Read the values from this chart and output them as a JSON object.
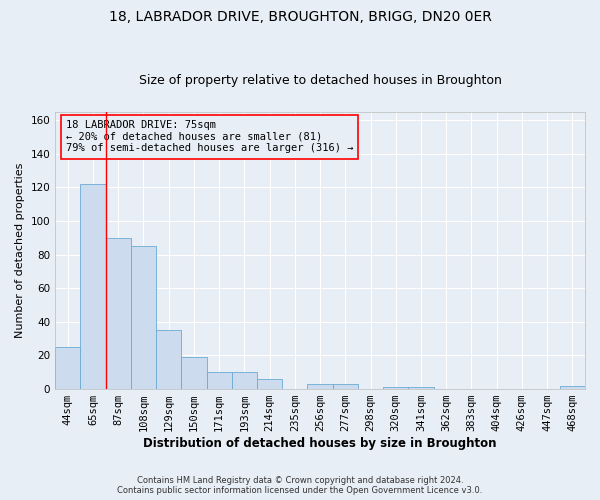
{
  "title1": "18, LABRADOR DRIVE, BROUGHTON, BRIGG, DN20 0ER",
  "title2": "Size of property relative to detached houses in Broughton",
  "xlabel": "Distribution of detached houses by size in Broughton",
  "ylabel": "Number of detached properties",
  "bins": [
    "44sqm",
    "65sqm",
    "87sqm",
    "108sqm",
    "129sqm",
    "150sqm",
    "171sqm",
    "193sqm",
    "214sqm",
    "235sqm",
    "256sqm",
    "277sqm",
    "298sqm",
    "320sqm",
    "341sqm",
    "362sqm",
    "383sqm",
    "404sqm",
    "426sqm",
    "447sqm",
    "468sqm"
  ],
  "values": [
    25,
    122,
    90,
    85,
    35,
    19,
    10,
    10,
    6,
    0,
    3,
    3,
    0,
    1,
    1,
    0,
    0,
    0,
    0,
    0,
    2
  ],
  "bar_color": "#ccdcee",
  "bar_edge_color": "#6aaad4",
  "ylim": [
    0,
    165
  ],
  "yticks": [
    0,
    20,
    40,
    60,
    80,
    100,
    120,
    140,
    160
  ],
  "annotation_title": "18 LABRADOR DRIVE: 75sqm",
  "annotation_line1": "← 20% of detached houses are smaller (81)",
  "annotation_line2": "79% of semi-detached houses are larger (316) →",
  "footer1": "Contains HM Land Registry data © Crown copyright and database right 2024.",
  "footer2": "Contains public sector information licensed under the Open Government Licence v3.0.",
  "background_color": "#e8eef5",
  "grid_color": "#ffffff",
  "title1_fontsize": 10,
  "title2_fontsize": 9,
  "xlabel_fontsize": 8.5,
  "ylabel_fontsize": 8,
  "tick_fontsize": 7.5,
  "footer_fontsize": 6,
  "ann_fontsize": 7.5
}
